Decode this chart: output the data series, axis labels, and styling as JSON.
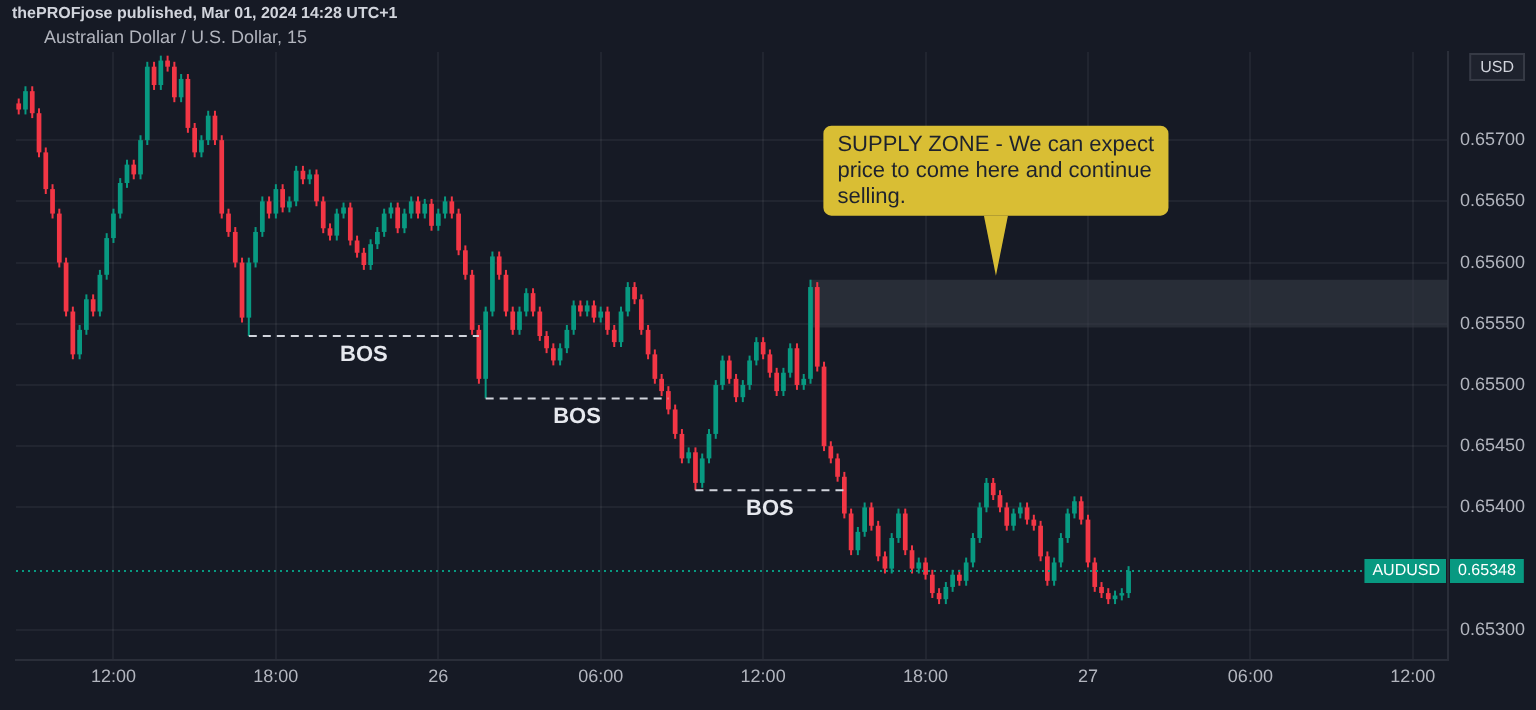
{
  "chart_data": {
    "type": "candlestick",
    "title": "Australian Dollar / U.S. Dollar, 15",
    "ylabel": "USD",
    "annotations": [
      "thePROFjose published, Mar 01, 2024 14:28 UTC+1",
      {
        "text": "SUPPLY ZONE - We can expect price to come here and continue selling.",
        "x": "2024-02-26T20:36",
        "y": 0.65586
      },
      {
        "text": "0.65348",
        "y": 0.65348
      }
    ],
    "x": [
      "2024-02-25T08:30",
      "2024-02-25T08:45",
      "2024-02-25T09:00",
      "2024-02-25T09:15",
      "2024-02-25T09:30",
      "2024-02-25T09:45",
      "2024-02-25T10:00",
      "2024-02-25T10:15",
      "2024-02-25T10:30",
      "2024-02-25T10:45",
      "2024-02-25T11:00",
      "2024-02-25T11:15",
      "2024-02-25T11:30",
      "2024-02-25T11:45",
      "2024-02-25T12:00",
      "2024-02-25T12:15",
      "2024-02-25T12:30",
      "2024-02-25T12:45",
      "2024-02-25T13:00",
      "2024-02-25T13:15",
      "2024-02-25T13:30",
      "2024-02-25T13:45",
      "2024-02-25T14:00",
      "2024-02-25T14:15",
      "2024-02-25T14:30",
      "2024-02-25T14:45",
      "2024-02-25T15:00",
      "2024-02-25T15:15",
      "2024-02-25T15:30",
      "2024-02-25T15:45",
      "2024-02-25T16:00",
      "2024-02-25T16:15",
      "2024-02-25T16:30",
      "2024-02-25T16:45",
      "2024-02-25T17:00",
      "2024-02-25T17:15",
      "2024-02-25T17:30",
      "2024-02-25T17:45",
      "2024-02-25T18:00",
      "2024-02-25T18:15",
      "2024-02-25T18:30",
      "2024-02-25T18:45",
      "2024-02-25T19:00",
      "2024-02-25T19:15",
      "2024-02-25T19:30",
      "2024-02-25T19:45",
      "2024-02-25T20:00",
      "2024-02-25T20:15",
      "2024-02-25T20:30",
      "2024-02-25T20:45",
      "2024-02-25T21:00",
      "2024-02-25T21:15",
      "2024-02-25T21:30",
      "2024-02-25T21:45",
      "2024-02-25T22:00",
      "2024-02-25T22:15",
      "2024-02-25T22:30",
      "2024-02-25T22:45",
      "2024-02-25T23:00",
      "2024-02-25T23:15",
      "2024-02-25T23:30",
      "2024-02-25T23:45",
      "2024-02-26T00:00",
      "2024-02-26T00:15",
      "2024-02-26T00:30",
      "2024-02-26T00:45",
      "2024-02-26T01:00",
      "2024-02-26T01:15",
      "2024-02-26T01:30",
      "2024-02-26T01:45",
      "2024-02-26T02:00",
      "2024-02-26T02:15",
      "2024-02-26T02:30",
      "2024-02-26T02:45",
      "2024-02-26T03:00",
      "2024-02-26T03:15",
      "2024-02-26T03:30",
      "2024-02-26T03:45",
      "2024-02-26T04:00",
      "2024-02-26T04:15",
      "2024-02-26T04:30",
      "2024-02-26T04:45",
      "2024-02-26T05:00",
      "2024-02-26T05:15",
      "2024-02-26T05:30",
      "2024-02-26T05:45",
      "2024-02-26T06:00",
      "2024-02-26T06:15",
      "2024-02-26T06:30",
      "2024-02-26T06:45",
      "2024-02-26T07:00",
      "2024-02-26T07:15",
      "2024-02-26T07:30",
      "2024-02-26T07:45",
      "2024-02-26T08:00",
      "2024-02-26T08:15",
      "2024-02-26T08:30",
      "2024-02-26T08:45",
      "2024-02-26T09:00",
      "2024-02-26T09:15",
      "2024-02-26T09:30",
      "2024-02-26T09:45",
      "2024-02-26T10:00",
      "2024-02-26T10:15",
      "2024-02-26T10:30",
      "2024-02-26T10:45",
      "2024-02-26T11:00",
      "2024-02-26T11:15",
      "2024-02-26T11:30",
      "2024-02-26T11:45",
      "2024-02-26T12:00",
      "2024-02-26T12:15",
      "2024-02-26T12:30",
      "2024-02-26T12:45",
      "2024-02-26T13:00",
      "2024-02-26T13:15",
      "2024-02-26T13:30",
      "2024-02-26T13:45",
      "2024-02-26T14:00",
      "2024-02-26T14:15",
      "2024-02-26T14:30",
      "2024-02-26T14:45",
      "2024-02-26T15:00",
      "2024-02-26T15:15",
      "2024-02-26T15:30",
      "2024-02-26T15:45",
      "2024-02-26T16:00",
      "2024-02-26T16:15",
      "2024-02-26T16:30",
      "2024-02-26T16:45",
      "2024-02-26T17:00",
      "2024-02-26T17:15",
      "2024-02-26T17:30",
      "2024-02-26T17:45",
      "2024-02-26T18:00",
      "2024-02-26T18:15",
      "2024-02-26T18:30",
      "2024-02-26T18:45",
      "2024-02-26T19:00",
      "2024-02-26T19:15",
      "2024-02-26T19:30",
      "2024-02-26T19:45",
      "2024-02-26T20:00",
      "2024-02-26T20:15",
      "2024-02-26T20:30",
      "2024-02-26T20:45",
      "2024-02-26T21:00",
      "2024-02-26T21:15",
      "2024-02-26T21:30",
      "2024-02-26T21:45",
      "2024-02-26T22:00",
      "2024-02-26T22:15",
      "2024-02-26T22:30",
      "2024-02-26T22:45",
      "2024-02-26T23:00",
      "2024-02-26T23:15",
      "2024-02-26T23:30",
      "2024-02-26T23:45",
      "2024-02-27T00:00",
      "2024-02-27T00:15",
      "2024-02-27T00:30",
      "2024-02-27T00:45",
      "2024-02-27T01:00",
      "2024-02-27T01:15",
      "2024-02-27T01:30"
    ],
    "ohlc": [
      [
        0.6573,
        0.65734,
        0.65721,
        0.65725
      ],
      [
        0.65725,
        0.65744,
        0.65721,
        0.6574
      ],
      [
        0.6574,
        0.65744,
        0.65718,
        0.65722
      ],
      [
        0.65722,
        0.65726,
        0.65686,
        0.6569
      ],
      [
        0.6569,
        0.65694,
        0.65656,
        0.6566
      ],
      [
        0.6566,
        0.65664,
        0.65636,
        0.6564
      ],
      [
        0.6564,
        0.65644,
        0.65596,
        0.656
      ],
      [
        0.656,
        0.65604,
        0.65556,
        0.6556
      ],
      [
        0.6556,
        0.65564,
        0.65521,
        0.65525
      ],
      [
        0.65525,
        0.65549,
        0.65521,
        0.65545
      ],
      [
        0.65545,
        0.65574,
        0.65541,
        0.6557
      ],
      [
        0.6557,
        0.65574,
        0.65556,
        0.6556
      ],
      [
        0.6556,
        0.65594,
        0.65556,
        0.6559
      ],
      [
        0.6559,
        0.65624,
        0.65586,
        0.6562
      ],
      [
        0.6562,
        0.65644,
        0.65616,
        0.6564
      ],
      [
        0.6564,
        0.65669,
        0.65636,
        0.65665
      ],
      [
        0.65665,
        0.65684,
        0.65661,
        0.6568
      ],
      [
        0.6568,
        0.65684,
        0.65668,
        0.65672
      ],
      [
        0.65672,
        0.65704,
        0.65668,
        0.657
      ],
      [
        0.657,
        0.65764,
        0.65696,
        0.6576
      ],
      [
        0.6576,
        0.65764,
        0.65741,
        0.65745
      ],
      [
        0.65745,
        0.65769,
        0.65741,
        0.65765
      ],
      [
        0.65765,
        0.65769,
        0.65756,
        0.6576
      ],
      [
        0.6576,
        0.65764,
        0.65731,
        0.65735
      ],
      [
        0.65735,
        0.65754,
        0.65731,
        0.6575
      ],
      [
        0.6575,
        0.65754,
        0.65706,
        0.6571
      ],
      [
        0.6571,
        0.65714,
        0.65686,
        0.6569
      ],
      [
        0.6569,
        0.65704,
        0.65686,
        0.657
      ],
      [
        0.657,
        0.65724,
        0.65696,
        0.6572
      ],
      [
        0.6572,
        0.65724,
        0.65696,
        0.657
      ],
      [
        0.657,
        0.65704,
        0.65636,
        0.6564
      ],
      [
        0.6564,
        0.65644,
        0.65621,
        0.65625
      ],
      [
        0.65625,
        0.65629,
        0.65596,
        0.656
      ],
      [
        0.656,
        0.65604,
        0.65551,
        0.65555
      ],
      [
        0.65555,
        0.65604,
        0.6554,
        0.656
      ],
      [
        0.656,
        0.65629,
        0.65596,
        0.65625
      ],
      [
        0.65625,
        0.65654,
        0.65621,
        0.6565
      ],
      [
        0.6565,
        0.65654,
        0.65636,
        0.6564
      ],
      [
        0.6564,
        0.65664,
        0.65636,
        0.6566
      ],
      [
        0.6566,
        0.65664,
        0.65641,
        0.65645
      ],
      [
        0.65645,
        0.65654,
        0.65641,
        0.6565
      ],
      [
        0.6565,
        0.65679,
        0.65646,
        0.65675
      ],
      [
        0.65675,
        0.65679,
        0.65664,
        0.65668
      ],
      [
        0.65668,
        0.65676,
        0.65664,
        0.65672
      ],
      [
        0.65672,
        0.65676,
        0.65646,
        0.6565
      ],
      [
        0.6565,
        0.65654,
        0.65624,
        0.65628
      ],
      [
        0.65628,
        0.65632,
        0.65618,
        0.65622
      ],
      [
        0.65622,
        0.65644,
        0.65618,
        0.6564
      ],
      [
        0.6564,
        0.65649,
        0.65636,
        0.65645
      ],
      [
        0.65645,
        0.65649,
        0.65614,
        0.65618
      ],
      [
        0.65618,
        0.65622,
        0.65604,
        0.65608
      ],
      [
        0.65608,
        0.65612,
        0.65594,
        0.65598
      ],
      [
        0.65598,
        0.65619,
        0.65594,
        0.65615
      ],
      [
        0.65615,
        0.65629,
        0.65611,
        0.65625
      ],
      [
        0.65625,
        0.65644,
        0.65621,
        0.6564
      ],
      [
        0.6564,
        0.65649,
        0.65636,
        0.65645
      ],
      [
        0.65645,
        0.65649,
        0.65624,
        0.65628
      ],
      [
        0.65628,
        0.65644,
        0.65624,
        0.6564
      ],
      [
        0.6564,
        0.65654,
        0.65636,
        0.6565
      ],
      [
        0.6565,
        0.65654,
        0.65636,
        0.6564
      ],
      [
        0.6564,
        0.65652,
        0.65636,
        0.65648
      ],
      [
        0.65648,
        0.65652,
        0.65626,
        0.6563
      ],
      [
        0.6563,
        0.65644,
        0.65626,
        0.6564
      ],
      [
        0.6564,
        0.65654,
        0.65636,
        0.6565
      ],
      [
        0.6565,
        0.65654,
        0.65636,
        0.6564
      ],
      [
        0.6564,
        0.65644,
        0.65606,
        0.6561
      ],
      [
        0.6561,
        0.65614,
        0.65586,
        0.6559
      ],
      [
        0.6559,
        0.65594,
        0.65541,
        0.65545
      ],
      [
        0.65545,
        0.65549,
        0.65501,
        0.65505
      ],
      [
        0.65505,
        0.65564,
        0.65489,
        0.6556
      ],
      [
        0.6556,
        0.65609,
        0.65556,
        0.65605
      ],
      [
        0.65605,
        0.65609,
        0.65586,
        0.6559
      ],
      [
        0.6559,
        0.65594,
        0.65556,
        0.6556
      ],
      [
        0.6556,
        0.65564,
        0.65541,
        0.65545
      ],
      [
        0.65545,
        0.65564,
        0.65541,
        0.6556
      ],
      [
        0.6556,
        0.65579,
        0.65556,
        0.65575
      ],
      [
        0.65575,
        0.65579,
        0.65556,
        0.6556
      ],
      [
        0.6556,
        0.65564,
        0.65536,
        0.6554
      ],
      [
        0.6554,
        0.65544,
        0.65526,
        0.6553
      ],
      [
        0.6553,
        0.65534,
        0.65516,
        0.6552
      ],
      [
        0.6552,
        0.65534,
        0.65516,
        0.6553
      ],
      [
        0.6553,
        0.65549,
        0.65526,
        0.65545
      ],
      [
        0.65545,
        0.65569,
        0.65541,
        0.65565
      ],
      [
        0.65565,
        0.65569,
        0.65556,
        0.6556
      ],
      [
        0.6556,
        0.65569,
        0.65556,
        0.65565
      ],
      [
        0.65565,
        0.65569,
        0.65551,
        0.65555
      ],
      [
        0.65555,
        0.65564,
        0.65551,
        0.6556
      ],
      [
        0.6556,
        0.65564,
        0.65541,
        0.65545
      ],
      [
        0.65545,
        0.65549,
        0.65531,
        0.65535
      ],
      [
        0.65535,
        0.65564,
        0.65531,
        0.6556
      ],
      [
        0.6556,
        0.65584,
        0.65556,
        0.6558
      ],
      [
        0.6558,
        0.65584,
        0.65566,
        0.6557
      ],
      [
        0.6557,
        0.65574,
        0.65541,
        0.65545
      ],
      [
        0.65545,
        0.65549,
        0.65521,
        0.65525
      ],
      [
        0.65525,
        0.65529,
        0.65501,
        0.65505
      ],
      [
        0.65505,
        0.65509,
        0.65491,
        0.65495
      ],
      [
        0.65495,
        0.65499,
        0.65476,
        0.6548
      ],
      [
        0.6548,
        0.65484,
        0.65456,
        0.6546
      ],
      [
        0.6546,
        0.65464,
        0.65436,
        0.6544
      ],
      [
        0.6544,
        0.65449,
        0.65436,
        0.65445
      ],
      [
        0.65445,
        0.65449,
        0.65414,
        0.6542
      ],
      [
        0.6542,
        0.65444,
        0.65416,
        0.6544
      ],
      [
        0.6544,
        0.65464,
        0.65436,
        0.6546
      ],
      [
        0.6546,
        0.65504,
        0.65456,
        0.655
      ],
      [
        0.655,
        0.65524,
        0.65496,
        0.6552
      ],
      [
        0.6552,
        0.65524,
        0.65501,
        0.65505
      ],
      [
        0.65505,
        0.65509,
        0.65486,
        0.6549
      ],
      [
        0.6549,
        0.65504,
        0.65486,
        0.655
      ],
      [
        0.655,
        0.65524,
        0.65496,
        0.6552
      ],
      [
        0.6552,
        0.65539,
        0.65516,
        0.65535
      ],
      [
        0.65535,
        0.65539,
        0.65521,
        0.65525
      ],
      [
        0.65525,
        0.65529,
        0.65506,
        0.6551
      ],
      [
        0.6551,
        0.65514,
        0.65491,
        0.65495
      ],
      [
        0.65495,
        0.65514,
        0.65491,
        0.6551
      ],
      [
        0.6551,
        0.65534,
        0.65506,
        0.6553
      ],
      [
        0.6553,
        0.65534,
        0.65496,
        0.655
      ],
      [
        0.655,
        0.65509,
        0.65496,
        0.65505
      ],
      [
        0.65505,
        0.65586,
        0.65501,
        0.6558
      ],
      [
        0.6558,
        0.65584,
        0.65511,
        0.65515
      ],
      [
        0.65515,
        0.65519,
        0.65446,
        0.6545
      ],
      [
        0.6545,
        0.65454,
        0.65436,
        0.6544
      ],
      [
        0.6544,
        0.65444,
        0.65421,
        0.65425
      ],
      [
        0.65425,
        0.65429,
        0.65391,
        0.65395
      ],
      [
        0.65395,
        0.65399,
        0.65361,
        0.65365
      ],
      [
        0.65365,
        0.65384,
        0.65361,
        0.6538
      ],
      [
        0.6538,
        0.65404,
        0.65376,
        0.654
      ],
      [
        0.654,
        0.65404,
        0.65381,
        0.65385
      ],
      [
        0.65385,
        0.65389,
        0.65356,
        0.6536
      ],
      [
        0.6536,
        0.65364,
        0.65346,
        0.6535
      ],
      [
        0.6535,
        0.65379,
        0.65346,
        0.65375
      ],
      [
        0.65375,
        0.65399,
        0.65371,
        0.65395
      ],
      [
        0.65395,
        0.65399,
        0.65361,
        0.65365
      ],
      [
        0.65365,
        0.65369,
        0.65346,
        0.6535
      ],
      [
        0.6535,
        0.65359,
        0.65346,
        0.65355
      ],
      [
        0.65355,
        0.65359,
        0.65341,
        0.65345
      ],
      [
        0.65345,
        0.65349,
        0.65326,
        0.6533
      ],
      [
        0.6533,
        0.65334,
        0.65321,
        0.65325
      ],
      [
        0.65325,
        0.65339,
        0.65321,
        0.65335
      ],
      [
        0.65335,
        0.65349,
        0.65331,
        0.65345
      ],
      [
        0.65345,
        0.65349,
        0.65336,
        0.6534
      ],
      [
        0.6534,
        0.65359,
        0.65336,
        0.65355
      ],
      [
        0.65355,
        0.65379,
        0.65351,
        0.65375
      ],
      [
        0.65375,
        0.65404,
        0.65371,
        0.654
      ],
      [
        0.654,
        0.65424,
        0.65396,
        0.6542
      ],
      [
        0.6542,
        0.65424,
        0.65406,
        0.6541
      ],
      [
        0.6541,
        0.65414,
        0.65396,
        0.654
      ],
      [
        0.654,
        0.65404,
        0.65381,
        0.65385
      ],
      [
        0.65385,
        0.65399,
        0.65381,
        0.65395
      ],
      [
        0.65395,
        0.65404,
        0.65391,
        0.654
      ],
      [
        0.654,
        0.65404,
        0.65386,
        0.6539
      ],
      [
        0.6539,
        0.65394,
        0.65381,
        0.65385
      ],
      [
        0.65385,
        0.65389,
        0.65356,
        0.6536
      ],
      [
        0.6536,
        0.65364,
        0.65336,
        0.6534
      ],
      [
        0.6534,
        0.65359,
        0.65336,
        0.65355
      ],
      [
        0.65355,
        0.65379,
        0.65351,
        0.65375
      ],
      [
        0.65375,
        0.65399,
        0.65371,
        0.65395
      ],
      [
        0.65395,
        0.65409,
        0.65391,
        0.65405
      ],
      [
        0.65405,
        0.65409,
        0.65386,
        0.6539
      ],
      [
        0.6539,
        0.65394,
        0.65351,
        0.65355
      ],
      [
        0.65355,
        0.65359,
        0.65331,
        0.65335
      ],
      [
        0.65335,
        0.65339,
        0.65326,
        0.6533
      ],
      [
        0.6533,
        0.65334,
        0.65321,
        0.65325
      ],
      [
        0.65325,
        0.65332,
        0.65321,
        0.65328
      ],
      [
        0.65328,
        0.65334,
        0.65324,
        0.6533
      ],
      [
        0.6533,
        0.65352,
        0.65326,
        0.65348
      ]
    ],
    "xlim": [
      "2024-02-25T08:24",
      "2024-02-27T13:18"
    ],
    "xticks": [
      {
        "value": "2024-02-25T12:00",
        "label": "12:00"
      },
      {
        "value": "2024-02-25T18:00",
        "label": "18:00"
      },
      {
        "value": "2024-02-26",
        "label": "26"
      },
      {
        "value": "2024-02-26T06:00",
        "label": "06:00"
      },
      {
        "value": "2024-02-26T12:00",
        "label": "12:00"
      },
      {
        "value": "2024-02-26T18:00",
        "label": "18:00"
      },
      {
        "value": "2024-02-27",
        "label": "27"
      },
      {
        "value": "2024-02-27T06:00",
        "label": "06:00"
      },
      {
        "value": "2024-02-27T12:00",
        "label": "12:00"
      }
    ],
    "ylim": [
      0.65275,
      0.65772
    ],
    "yticks": [
      {
        "value": 0.657,
        "label": "0.65700"
      },
      {
        "value": 0.6565,
        "label": "0.65650"
      },
      {
        "value": 0.656,
        "label": "0.65600"
      },
      {
        "value": 0.6555,
        "label": "0.65550"
      },
      {
        "value": 0.655,
        "label": "0.65500"
      },
      {
        "value": 0.6545,
        "label": "0.65450"
      },
      {
        "value": 0.654,
        "label": "0.65400"
      },
      {
        "value": 0.653,
        "label": "0.65300"
      }
    ],
    "grid": true,
    "bands": [
      {
        "axis": "y",
        "from": 0.65547,
        "to": 0.65586,
        "color": "#363a45"
      }
    ],
    "ref_lines": [
      {
        "axis": "y",
        "value": 0.6554,
        "label": "BOS",
        "color": "#d1d4dc",
        "line_style": "dashed"
      },
      {
        "axis": "y",
        "value": 0.65489,
        "label": "BOS",
        "color": "#d1d4dc",
        "line_style": "dashed"
      },
      {
        "axis": "y",
        "value": 0.65414,
        "label": "BOS",
        "color": "#d1d4dc",
        "line_style": "dashed"
      },
      {
        "axis": "y",
        "value": 0.65348,
        "label": "AUDUSD",
        "color": "#089981",
        "line_style": "dotted"
      }
    ]
  }
}
